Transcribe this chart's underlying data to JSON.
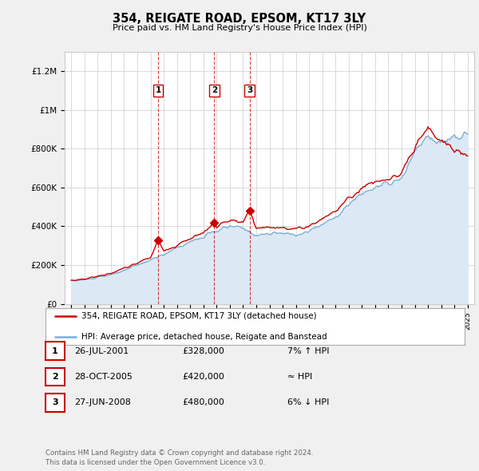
{
  "title": "354, REIGATE ROAD, EPSOM, KT17 3LY",
  "subtitle": "Price paid vs. HM Land Registry's House Price Index (HPI)",
  "background_color": "#f0f0f0",
  "plot_bg_color": "#ffffff",
  "ylim": [
    0,
    1300000
  ],
  "yticks": [
    0,
    200000,
    400000,
    600000,
    800000,
    1000000,
    1200000
  ],
  "ytick_labels": [
    "£0",
    "£200K",
    "£400K",
    "£600K",
    "£800K",
    "£1M",
    "£1.2M"
  ],
  "sale_dates": [
    2001.57,
    2005.83,
    2008.49
  ],
  "sale_prices": [
    328000,
    420000,
    480000
  ],
  "sale_labels": [
    "1",
    "2",
    "3"
  ],
  "hpi_color": "#7bafd4",
  "hpi_fill_color": "#dce9f5",
  "price_color": "#cc0000",
  "vline_color": "#cc0000",
  "footer_text": "Contains HM Land Registry data © Crown copyright and database right 2024.\nThis data is licensed under the Open Government Licence v3.0.",
  "table_rows": [
    {
      "num": "1",
      "date": "26-JUL-2001",
      "price": "£328,000",
      "rel": "7% ↑ HPI"
    },
    {
      "num": "2",
      "date": "28-OCT-2005",
      "price": "£420,000",
      "rel": "≈ HPI"
    },
    {
      "num": "3",
      "date": "27-JUN-2008",
      "price": "£480,000",
      "rel": "6% ↓ HPI"
    }
  ],
  "legend_line1": "354, REIGATE ROAD, EPSOM, KT17 3LY (detached house)",
  "legend_line2": "HPI: Average price, detached house, Reigate and Banstead"
}
